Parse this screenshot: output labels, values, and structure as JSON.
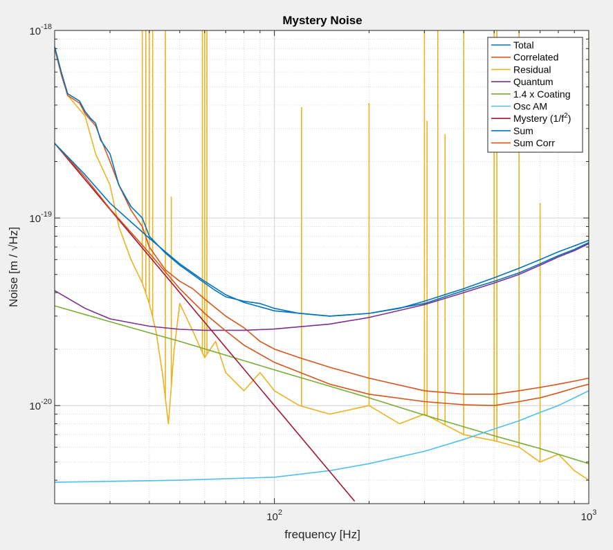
{
  "chart_data": {
    "type": "line",
    "title": "Mystery Noise",
    "xlabel": "frequency [Hz]",
    "ylabel_parts": [
      "Noise [m / ",
      "√",
      "Hz]"
    ],
    "xscale": "log",
    "yscale": "log",
    "xlim": [
      20,
      1000
    ],
    "ylim": [
      3e-21,
      1e-18
    ],
    "grid": true,
    "minor_grid": true,
    "legend_placement": "top-right",
    "x_ticks": [
      {
        "value": 100,
        "base": "10",
        "exp": "2"
      },
      {
        "value": 1000,
        "base": "10",
        "exp": "3"
      }
    ],
    "y_ticks": [
      {
        "value": 1e-20,
        "base": "10",
        "exp": "-20"
      },
      {
        "value": 1e-19,
        "base": "10",
        "exp": "-19"
      },
      {
        "value": 1e-18,
        "base": "10",
        "exp": "-18"
      }
    ],
    "x_grid": [
      20,
      30,
      40,
      50,
      60,
      70,
      80,
      90,
      100,
      200,
      300,
      400,
      500,
      600,
      700,
      800,
      900,
      1000
    ],
    "y_grid": [
      3e-21,
      4e-21,
      5e-21,
      6e-21,
      7e-21,
      8e-21,
      9e-21,
      1e-20,
      2e-20,
      3e-20,
      4e-20,
      5e-20,
      6e-20,
      7e-20,
      8e-20,
      9e-20,
      1e-19,
      2e-19,
      3e-19,
      4e-19,
      5e-19,
      6e-19,
      7e-19,
      8e-19,
      9e-19,
      1e-18
    ],
    "series": [
      {
        "name": "Total",
        "color": "#0072bd",
        "points": [
          [
            20,
            8.2e-19
          ],
          [
            21,
            6e-19
          ],
          [
            22,
            4.6e-19
          ],
          [
            24,
            4.2e-19
          ],
          [
            25,
            3.7e-19
          ],
          [
            26,
            3.4e-19
          ],
          [
            27,
            3.2e-19
          ],
          [
            28,
            2.6e-19
          ],
          [
            30,
            2.2e-19
          ],
          [
            32,
            1.5e-19
          ],
          [
            35,
            1.15e-19
          ],
          [
            38,
            1e-19
          ],
          [
            40,
            8e-20
          ],
          [
            45,
            6.5e-20
          ],
          [
            50,
            5.6e-20
          ],
          [
            55,
            5e-20
          ],
          [
            60,
            4.5e-20
          ],
          [
            65,
            4.1e-20
          ],
          [
            70,
            3.8e-20
          ],
          [
            80,
            3.6e-20
          ],
          [
            90,
            3.5e-20
          ],
          [
            100,
            3.3e-20
          ],
          [
            120,
            3.1e-20
          ],
          [
            150,
            3e-20
          ],
          [
            200,
            3.1e-20
          ],
          [
            250,
            3.3e-20
          ],
          [
            300,
            3.6e-20
          ],
          [
            400,
            4.2e-20
          ],
          [
            500,
            4.8e-20
          ],
          [
            600,
            5.4e-20
          ],
          [
            700,
            6e-20
          ],
          [
            800,
            6.6e-20
          ],
          [
            900,
            7.1e-20
          ],
          [
            1000,
            7.6e-20
          ]
        ]
      },
      {
        "name": "Correlated",
        "color": "#d95319",
        "points": [
          [
            20,
            8e-19
          ],
          [
            21,
            5.8e-19
          ],
          [
            22,
            4.5e-19
          ],
          [
            24,
            4.1e-19
          ],
          [
            25,
            3.6e-19
          ],
          [
            27,
            3.1e-19
          ],
          [
            30,
            2e-19
          ],
          [
            32,
            1.5e-19
          ],
          [
            35,
            1.1e-19
          ],
          [
            38,
            9e-20
          ],
          [
            40,
            7e-20
          ],
          [
            45,
            5.3e-20
          ],
          [
            50,
            4.6e-20
          ],
          [
            55,
            4.2e-20
          ],
          [
            60,
            3.7e-20
          ],
          [
            70,
            3e-20
          ],
          [
            80,
            2.6e-20
          ],
          [
            90,
            2.2e-20
          ],
          [
            100,
            2e-20
          ],
          [
            120,
            1.8e-20
          ],
          [
            150,
            1.6e-20
          ],
          [
            200,
            1.4e-20
          ],
          [
            300,
            1.2e-20
          ],
          [
            400,
            1.15e-20
          ],
          [
            500,
            1.15e-20
          ],
          [
            600,
            1.2e-20
          ],
          [
            700,
            1.25e-20
          ],
          [
            800,
            1.3e-20
          ],
          [
            900,
            1.35e-20
          ],
          [
            1000,
            1.4e-20
          ]
        ]
      },
      {
        "name": "Residual",
        "color": "#edb120",
        "points": [
          [
            20,
            8e-19
          ],
          [
            22,
            4.5e-19
          ],
          [
            25,
            3.5e-19
          ],
          [
            27,
            2.2e-19
          ],
          [
            30,
            1.5e-19
          ],
          [
            32,
            9e-20
          ],
          [
            35,
            6e-20
          ],
          [
            38,
            4.5e-20
          ],
          [
            40,
            3.5e-20
          ],
          [
            42,
            2.5e-20
          ],
          [
            44,
            1.5e-20
          ],
          [
            46,
            8e-21
          ],
          [
            48,
            2e-20
          ],
          [
            50,
            3.5e-20
          ],
          [
            55,
            2.5e-20
          ],
          [
            60,
            1.8e-20
          ],
          [
            65,
            2.2e-20
          ],
          [
            70,
            1.5e-20
          ],
          [
            80,
            1.2e-20
          ],
          [
            90,
            1.5e-20
          ],
          [
            100,
            1.2e-20
          ],
          [
            120,
            1e-20
          ],
          [
            150,
            9e-21
          ],
          [
            200,
            1e-20
          ],
          [
            250,
            8e-21
          ],
          [
            300,
            9e-21
          ],
          [
            400,
            7e-21
          ],
          [
            500,
            6.5e-21
          ],
          [
            600,
            6e-21
          ],
          [
            700,
            5e-21
          ],
          [
            800,
            5.5e-21
          ],
          [
            900,
            4.5e-21
          ],
          [
            1000,
            4e-21
          ]
        ],
        "spikes": [
          [
            38,
            1e-18
          ],
          [
            39,
            1e-18
          ],
          [
            40,
            1e-18
          ],
          [
            41,
            1e-18
          ],
          [
            45,
            1e-18
          ],
          [
            47,
            1.3e-19
          ],
          [
            59,
            1e-18
          ],
          [
            60,
            1e-18
          ],
          [
            61,
            1e-18
          ],
          [
            122,
            3.9e-19
          ],
          [
            200,
            4.1e-19
          ],
          [
            300,
            1e-18
          ],
          [
            306,
            3.3e-19
          ],
          [
            331,
            1e-18
          ],
          [
            349,
            2.8e-19
          ],
          [
            400,
            1e-18
          ],
          [
            500,
            1e-18
          ],
          [
            510,
            1e-18
          ],
          [
            600,
            1e-18
          ],
          [
            700,
            1.2e-19
          ],
          [
            1000,
            1e-18
          ]
        ]
      },
      {
        "name": "Quantum",
        "color": "#7e2f8e",
        "points": [
          [
            20,
            4.1e-20
          ],
          [
            25,
            3.3e-20
          ],
          [
            30,
            2.9e-20
          ],
          [
            40,
            2.65e-20
          ],
          [
            50,
            2.55e-20
          ],
          [
            60,
            2.52e-20
          ],
          [
            80,
            2.52e-20
          ],
          [
            100,
            2.56e-20
          ],
          [
            150,
            2.72e-20
          ],
          [
            200,
            2.95e-20
          ],
          [
            300,
            3.45e-20
          ],
          [
            400,
            4e-20
          ],
          [
            500,
            4.5e-20
          ],
          [
            600,
            5e-20
          ],
          [
            700,
            5.6e-20
          ],
          [
            800,
            6.2e-20
          ],
          [
            900,
            6.7e-20
          ],
          [
            1000,
            7.3e-20
          ]
        ]
      },
      {
        "name": "1.4 x Coating",
        "color": "#77ac30",
        "points": [
          [
            20,
            3.4e-20
          ],
          [
            30,
            2.8e-20
          ],
          [
            50,
            2.2e-20
          ],
          [
            100,
            1.55e-20
          ],
          [
            200,
            1.1e-20
          ],
          [
            300,
            8.9e-21
          ],
          [
            500,
            6.9e-21
          ],
          [
            700,
            5.9e-21
          ],
          [
            1000,
            4.9e-21
          ]
        ]
      },
      {
        "name": "Osc AM",
        "color": "#4dbeee",
        "points": [
          [
            20,
            3.9e-21
          ],
          [
            50,
            4e-21
          ],
          [
            100,
            4.15e-21
          ],
          [
            150,
            4.5e-21
          ],
          [
            200,
            4.9e-21
          ],
          [
            300,
            5.7e-21
          ],
          [
            400,
            6.6e-21
          ],
          [
            500,
            7.5e-21
          ],
          [
            600,
            8.3e-21
          ],
          [
            700,
            9.2e-21
          ],
          [
            800,
            1e-20
          ],
          [
            900,
            1.1e-20
          ],
          [
            1000,
            1.2e-20
          ]
        ]
      },
      {
        "name": "Mystery",
        "name_sup": "2",
        "color": "#a2142f",
        "points": [
          [
            20,
            2.5e-19
          ],
          [
            180,
            3.09e-21
          ]
        ]
      },
      {
        "name": "Sum",
        "color": "#0072bd",
        "points": [
          [
            20,
            2.5e-19
          ],
          [
            25,
            1.7e-19
          ],
          [
            30,
            1.2e-19
          ],
          [
            40,
            7.8e-20
          ],
          [
            50,
            5.7e-20
          ],
          [
            60,
            4.6e-20
          ],
          [
            70,
            3.9e-20
          ],
          [
            80,
            3.55e-20
          ],
          [
            100,
            3.2e-20
          ],
          [
            150,
            3e-20
          ],
          [
            200,
            3.1e-20
          ],
          [
            300,
            3.5e-20
          ],
          [
            400,
            4.1e-20
          ],
          [
            500,
            4.6e-20
          ],
          [
            600,
            5.1e-20
          ],
          [
            700,
            5.7e-20
          ],
          [
            800,
            6.3e-20
          ],
          [
            900,
            6.8e-20
          ],
          [
            1000,
            7.4e-20
          ]
        ]
      },
      {
        "name": "Sum Corr",
        "color": "#d95319",
        "points": [
          [
            20,
            2.5e-19
          ],
          [
            25,
            1.65e-19
          ],
          [
            30,
            1.12e-19
          ],
          [
            40,
            6.5e-20
          ],
          [
            50,
            4.2e-20
          ],
          [
            60,
            3.1e-20
          ],
          [
            70,
            2.5e-20
          ],
          [
            80,
            2.1e-20
          ],
          [
            100,
            1.7e-20
          ],
          [
            150,
            1.3e-20
          ],
          [
            200,
            1.15e-20
          ],
          [
            300,
            1.05e-20
          ],
          [
            400,
            1.01e-20
          ],
          [
            500,
            1e-20
          ],
          [
            600,
            1.05e-20
          ],
          [
            700,
            1.1e-20
          ],
          [
            800,
            1.17e-20
          ],
          [
            900,
            1.24e-20
          ],
          [
            1000,
            1.3e-20
          ]
        ]
      }
    ],
    "legend_entries": [
      "Total",
      "Correlated",
      "Residual",
      "Quantum",
      "1.4 x Coating",
      "Osc AM",
      "Mystery (1/f2)",
      "Sum",
      "Sum Corr"
    ]
  }
}
